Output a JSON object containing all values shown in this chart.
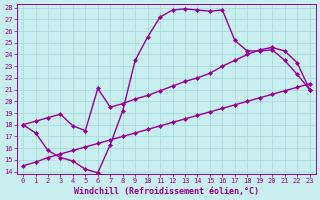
{
  "xlabel": "Windchill (Refroidissement éolien,°C)",
  "background_color": "#c8eef0",
  "line_color": "#990099",
  "xlim_min": -0.5,
  "xlim_max": 23.5,
  "ylim_min": 13.8,
  "ylim_max": 28.3,
  "xticks": [
    0,
    1,
    2,
    3,
    4,
    5,
    6,
    7,
    8,
    9,
    10,
    11,
    12,
    13,
    14,
    15,
    16,
    17,
    18,
    19,
    20,
    21,
    22,
    23
  ],
  "yticks": [
    14,
    15,
    16,
    17,
    18,
    19,
    20,
    21,
    22,
    23,
    24,
    25,
    26,
    27,
    28
  ],
  "line1_x": [
    0,
    1,
    2,
    3,
    4,
    5,
    6,
    7,
    8,
    9,
    10,
    11,
    12,
    13,
    14,
    15,
    16,
    17,
    18,
    19,
    20,
    21,
    22,
    23
  ],
  "line1_y": [
    18.0,
    17.3,
    15.8,
    15.2,
    14.9,
    14.2,
    13.9,
    16.3,
    19.2,
    23.5,
    25.5,
    27.2,
    27.8,
    27.9,
    27.8,
    27.7,
    27.8,
    25.2,
    24.3,
    24.3,
    24.4,
    23.5,
    22.3,
    21.0
  ],
  "line2_x": [
    0,
    1,
    2,
    3,
    4,
    5,
    6,
    7,
    8,
    9,
    10,
    11,
    12,
    13,
    14,
    15,
    16,
    17,
    18,
    19,
    20,
    21,
    22,
    23
  ],
  "line2_y": [
    18.0,
    18.3,
    18.6,
    18.9,
    17.9,
    17.5,
    21.1,
    19.5,
    19.8,
    20.2,
    20.5,
    20.9,
    21.3,
    21.7,
    22.0,
    22.4,
    23.0,
    23.5,
    24.0,
    24.4,
    24.6,
    24.3,
    23.3,
    21.0
  ],
  "line3_x": [
    0,
    1,
    2,
    3,
    4,
    5,
    6,
    7,
    8,
    9,
    10,
    11,
    12,
    13,
    14,
    15,
    16,
    17,
    18,
    19,
    20,
    21,
    22,
    23
  ],
  "line3_y": [
    14.5,
    14.8,
    15.2,
    15.5,
    15.8,
    16.1,
    16.4,
    16.7,
    17.0,
    17.3,
    17.6,
    17.9,
    18.2,
    18.5,
    18.8,
    19.1,
    19.4,
    19.7,
    20.0,
    20.3,
    20.6,
    20.9,
    21.2,
    21.5
  ],
  "grid_color": "#aadddd",
  "marker": "D",
  "markersize": 2,
  "linewidth": 1.0,
  "tick_fontsize": 5.0,
  "xlabel_fontsize": 6.0
}
